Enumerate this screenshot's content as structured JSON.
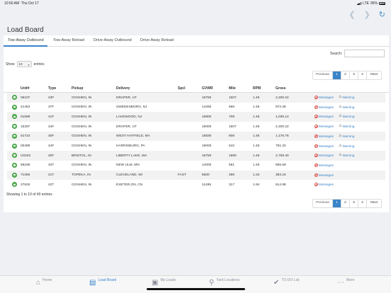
{
  "status_bar": {
    "time": "10:50 AM",
    "date": "Thu Oct 17",
    "network": "LTE",
    "battery": "95%"
  },
  "nav": {
    "back_icon": "chevron-left-icon",
    "forward_icon": "chevron-right-icon",
    "refresh_icon": "refresh-icon"
  },
  "page": {
    "title": "Load Board"
  },
  "tabs": [
    {
      "label": "Tow-Away Outbound",
      "active": true
    },
    {
      "label": "Tow-Away Reload",
      "active": false
    },
    {
      "label": "Drive-Away Outbound",
      "active": false
    },
    {
      "label": "Drive-Away Reload",
      "active": false
    }
  ],
  "search": {
    "label": "Search:",
    "value": "",
    "placeholder": ""
  },
  "entries": {
    "show_label": "Show",
    "value": "10",
    "suffix": "entries"
  },
  "pagination": {
    "previous": "Previous",
    "pages": [
      "1",
      "2",
      "3",
      "4"
    ],
    "active_page": "1",
    "next": "Next"
  },
  "table": {
    "columns": [
      "Unit#",
      "Type",
      "Pickup",
      "Delivery",
      "Spcl",
      "GVWR",
      "Mile",
      "RPM",
      "Gross"
    ],
    "rows": [
      {
        "unit": "06107",
        "type": "43F",
        "pickup": "GOSHEN, IN",
        "delivery": "DRAPER, UT",
        "spcl": "",
        "gvwr": "16750",
        "mile": "1507",
        "rpm": "1.46",
        "gross": "2,200.22",
        "messages": "Messages",
        "warning": "Warning"
      },
      {
        "unit": "41453",
        "type": "37F",
        "pickup": "GOSHEN, IN",
        "delivery": "SWEDESBORO, NJ",
        "spcl": "",
        "gvwr": "14260",
        "mile": "666",
        "rpm": "1.46",
        "gross": "972.36",
        "messages": "Messages",
        "warning": "Warning"
      },
      {
        "unit": "01599",
        "type": "41F",
        "pickup": "GOSHEN, IN",
        "delivery": "LAKEWOOD, NJ",
        "spcl": "",
        "gvwr": "16800",
        "mile": "709",
        "rpm": "1.46",
        "gross": "1,035.14",
        "messages": "Messages",
        "warning": "Warning"
      },
      {
        "unit": "15297",
        "type": "44F",
        "pickup": "GOSHEN, IN",
        "delivery": "DRAPER, UT",
        "spcl": "",
        "gvwr": "19000",
        "mile": "1507",
        "rpm": "1.46",
        "gross": "2,200.22",
        "messages": "Messages",
        "warning": "Warning"
      },
      {
        "unit": "01723",
        "type": "40F",
        "pickup": "GOSHEN, IN",
        "delivery": "WEST HATFIELD, MA",
        "spcl": "",
        "gvwr": "16830",
        "mile": "806",
        "rpm": "1.46",
        "gross": "1,176.76",
        "messages": "Messages",
        "warning": "Warning"
      },
      {
        "unit": "00499",
        "type": "44F",
        "pickup": "GOSHEN, IN",
        "delivery": "HARRISBURG, PA",
        "spcl": "",
        "gvwr": "19000",
        "mile": "542",
        "rpm": "1.46",
        "gross": "791.32",
        "messages": "Messages",
        "warning": "Warning"
      },
      {
        "unit": "U0202",
        "type": "40F",
        "pickup": "BRISTOL, IN",
        "delivery": "LIBERTY LAKE, WA",
        "spcl": "",
        "gvwr": "16750",
        "mile": "1890",
        "rpm": "1.46",
        "gross": "2,759.40",
        "messages": "Messages",
        "warning": "Warning"
      },
      {
        "unit": "59169",
        "type": "43T",
        "pickup": "GOSHEN, IN",
        "delivery": "NEW ULM, MN",
        "spcl": "",
        "gvwr": "14000",
        "mile": "581",
        "rpm": "1.49",
        "gross": "865.69",
        "messages": "Messages",
        "warning": ""
      },
      {
        "unit": "71256",
        "type": "21T",
        "pickup": "TOPEKA, IN",
        "delivery": "CLEVELAND, WI",
        "spcl": "FAST",
        "gvwr": "6500",
        "mile": "286",
        "rpm": "1.34",
        "gross": "383.24",
        "messages": "Messages",
        "warning": ""
      },
      {
        "unit": "27625",
        "type": "42T",
        "pickup": "GOSHEN, IN",
        "delivery": "EXETER,ON, CN",
        "spcl": "",
        "gvwr": "11495",
        "mile": "317",
        "rpm": "1.94",
        "gross": "614.98",
        "messages": "Messages",
        "warning": ""
      }
    ]
  },
  "info": {
    "text": "Showing 1 to 10 of 40 entries"
  },
  "tabbar": [
    {
      "label": "Home",
      "icon": "home-icon",
      "active": false
    },
    {
      "label": "Load Board",
      "icon": "clipboard-icon",
      "active": true
    },
    {
      "label": "My Loads",
      "icon": "truck-icon",
      "active": false
    },
    {
      "label": "Yard Locations",
      "icon": "location-pin-icon",
      "active": false
    },
    {
      "label": "TO-DO List",
      "icon": "check-circle-icon",
      "active": false
    },
    {
      "label": "More",
      "icon": "more-dots-icon",
      "active": false
    }
  ],
  "colors": {
    "accent": "#3a84c8",
    "status_green": "#5cb85c",
    "danger": "#d9534f"
  }
}
